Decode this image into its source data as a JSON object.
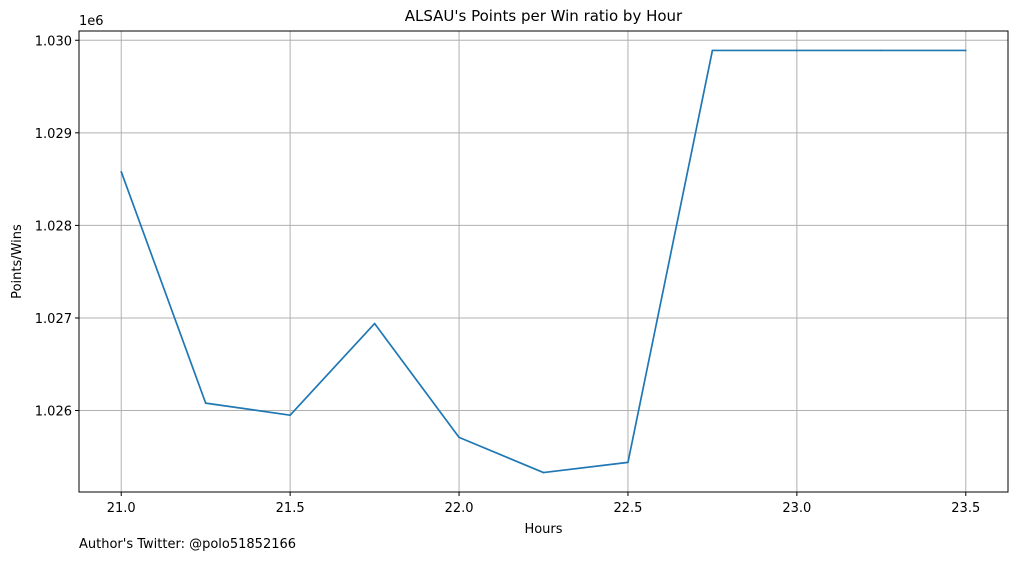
{
  "chart_data": {
    "type": "line",
    "title": "ALSAU's Points per Win ratio by Hour",
    "xlabel": "Hours",
    "ylabel": "Points/Wins",
    "y_offset_label": "1e6",
    "x": [
      21.0,
      21.25,
      21.5,
      21.75,
      22.0,
      22.25,
      22.5,
      22.75,
      23.0,
      23.25,
      23.5
    ],
    "series": [
      {
        "values": [
          1028580,
          1026080,
          1025950,
          1026940,
          1025710,
          1025330,
          1025440,
          1029890,
          1029890,
          1029890,
          1029890
        ],
        "color": "#1f77b4"
      }
    ],
    "xlim": [
      20.875,
      23.625
    ],
    "ylim": [
      1025120,
      1030100
    ],
    "xticks": [
      21.0,
      21.5,
      22.0,
      22.5,
      23.0,
      23.5
    ],
    "xtick_labels": [
      "21.0",
      "21.5",
      "22.0",
      "22.5",
      "23.0",
      "23.5"
    ],
    "yticks": [
      1026000,
      1027000,
      1028000,
      1029000,
      1030000
    ],
    "ytick_labels": [
      "1.026",
      "1.027",
      "1.028",
      "1.029",
      "1.030"
    ],
    "grid": true,
    "grid_color": "#b0b0b0"
  },
  "footer": {
    "text": "Author's Twitter: @polo51852166"
  }
}
